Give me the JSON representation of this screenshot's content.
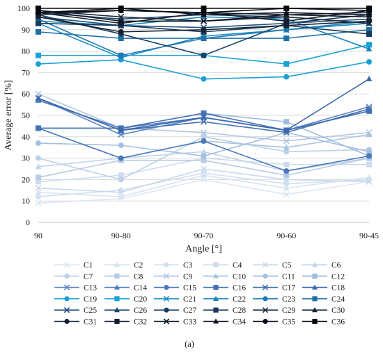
{
  "caption": "(a)",
  "chart_data": {
    "type": "line",
    "xlabel": "Angle [°]",
    "ylabel": "Average error [%]",
    "categories": [
      "90",
      "90-80",
      "90-70",
      "90-60",
      "90-45"
    ],
    "ylim": [
      0,
      100
    ],
    "yticks": [
      0,
      10,
      20,
      30,
      40,
      50,
      60,
      70,
      80,
      90,
      100
    ],
    "grid": "horizontal",
    "legend_position": "bottom",
    "series": [
      {
        "name": "C1",
        "color": "#dbe6f4",
        "marker": "x",
        "values": [
          9,
          11,
          20,
          13,
          19
        ]
      },
      {
        "name": "C2",
        "color": "#d7e4f2",
        "marker": "triangle",
        "values": [
          14,
          12,
          22,
          16,
          21
        ]
      },
      {
        "name": "C3",
        "color": "#d2e0f0",
        "marker": "circle",
        "values": [
          12,
          15,
          23,
          18,
          20
        ]
      },
      {
        "name": "C4",
        "color": "#cddcee",
        "marker": "square",
        "values": [
          19,
          22,
          30,
          27,
          27
        ]
      },
      {
        "name": "C5",
        "color": "#c7d8ec",
        "marker": "x",
        "values": [
          16,
          14,
          25,
          20,
          19
        ]
      },
      {
        "name": "C6",
        "color": "#c2d4ea",
        "marker": "triangle",
        "values": [
          26,
          30,
          33,
          24,
          30
        ]
      },
      {
        "name": "C7",
        "color": "#bcd0e7",
        "marker": "circle",
        "values": [
          30,
          20,
          40,
          33,
          34
        ]
      },
      {
        "name": "C8",
        "color": "#b6cbe5",
        "marker": "square",
        "values": [
          21,
          29,
          29,
          22,
          30
        ]
      },
      {
        "name": "C9",
        "color": "#b0c7e3",
        "marker": "x",
        "values": [
          60,
          44,
          42,
          38,
          42
        ]
      },
      {
        "name": "C10",
        "color": "#aac3e1",
        "marker": "triangle",
        "values": [
          44,
          30,
          38,
          35,
          41
        ]
      },
      {
        "name": "C11",
        "color": "#a4bfdf",
        "marker": "circle",
        "values": [
          37,
          36,
          31,
          42,
          33
        ]
      },
      {
        "name": "C12",
        "color": "#9ebbdd",
        "marker": "square",
        "values": [
          44,
          44,
          51,
          47,
          31
        ]
      },
      {
        "name": "C13",
        "color": "#5b86c4",
        "marker": "x",
        "values": [
          58,
          41,
          49,
          43,
          54
        ]
      },
      {
        "name": "C14",
        "color": "#4f7fc0",
        "marker": "triangle",
        "values": [
          57,
          44,
          49,
          43,
          52
        ]
      },
      {
        "name": "C15",
        "color": "#4a79bb",
        "marker": "circle",
        "values": [
          44,
          30,
          38,
          24,
          31
        ]
      },
      {
        "name": "C16",
        "color": "#4574b6",
        "marker": "square",
        "values": [
          44,
          44,
          51,
          43,
          52
        ]
      },
      {
        "name": "C17",
        "color": "#3f6eb1",
        "marker": "x",
        "values": [
          58,
          43,
          47,
          42,
          53
        ]
      },
      {
        "name": "C18",
        "color": "#3a68ab",
        "marker": "triangle",
        "values": [
          58,
          43,
          49,
          43,
          67
        ]
      },
      {
        "name": "C19",
        "color": "#1aa0d4",
        "marker": "circle",
        "values": [
          74,
          76,
          67,
          68,
          75
        ]
      },
      {
        "name": "C20",
        "color": "#19a2d6",
        "marker": "square",
        "values": [
          78,
          78,
          78,
          74,
          83
        ]
      },
      {
        "name": "C21",
        "color": "#1a8ec4",
        "marker": "x",
        "values": [
          93,
          77,
          87,
          90,
          93
        ]
      },
      {
        "name": "C22",
        "color": "#1a84bb",
        "marker": "triangle",
        "values": [
          94,
          92,
          96,
          95,
          81
        ]
      },
      {
        "name": "C23",
        "color": "#1c7ab2",
        "marker": "circle",
        "values": [
          95,
          78,
          86,
          90,
          94
        ]
      },
      {
        "name": "C24",
        "color": "#1e6fa7",
        "marker": "square",
        "values": [
          89,
          86,
          86,
          86,
          90
        ]
      },
      {
        "name": "C25",
        "color": "#1f4f7a",
        "marker": "x",
        "values": [
          96,
          92,
          91,
          93,
          95
        ]
      },
      {
        "name": "C26",
        "color": "#1d4770",
        "marker": "triangle",
        "values": [
          98,
          95,
          97,
          96,
          93
        ]
      },
      {
        "name": "C27",
        "color": "#1a4066",
        "marker": "circle",
        "values": [
          97,
          88,
          78,
          93,
          97
        ]
      },
      {
        "name": "C28",
        "color": "#17395d",
        "marker": "square",
        "values": [
          93,
          92,
          89,
          92,
          88
        ]
      },
      {
        "name": "C29",
        "color": "#1e2c3d",
        "marker": "x",
        "values": [
          99,
          96,
          94,
          96,
          93
        ]
      },
      {
        "name": "C30",
        "color": "#1a2838",
        "marker": "triangle",
        "values": [
          97,
          99,
          98,
          97,
          98
        ]
      },
      {
        "name": "C31",
        "color": "#162233",
        "marker": "circle",
        "values": [
          96,
          89,
          90,
          92,
          94
        ]
      },
      {
        "name": "C32",
        "color": "#131d2c",
        "marker": "square",
        "values": [
          98,
          93,
          98,
          94,
          99
        ]
      },
      {
        "name": "C33",
        "color": "#0f1722",
        "marker": "x",
        "values": [
          99,
          94,
          94,
          97,
          96
        ]
      },
      {
        "name": "C34",
        "color": "#0c121b",
        "marker": "triangle",
        "values": [
          98,
          100,
          97,
          98,
          97
        ]
      },
      {
        "name": "C35",
        "color": "#080d14",
        "marker": "circle",
        "values": [
          98,
          99,
          98,
          100,
          99
        ]
      },
      {
        "name": "C36",
        "color": "#05080d",
        "marker": "square",
        "values": [
          100,
          100,
          100,
          100,
          100
        ]
      }
    ]
  }
}
